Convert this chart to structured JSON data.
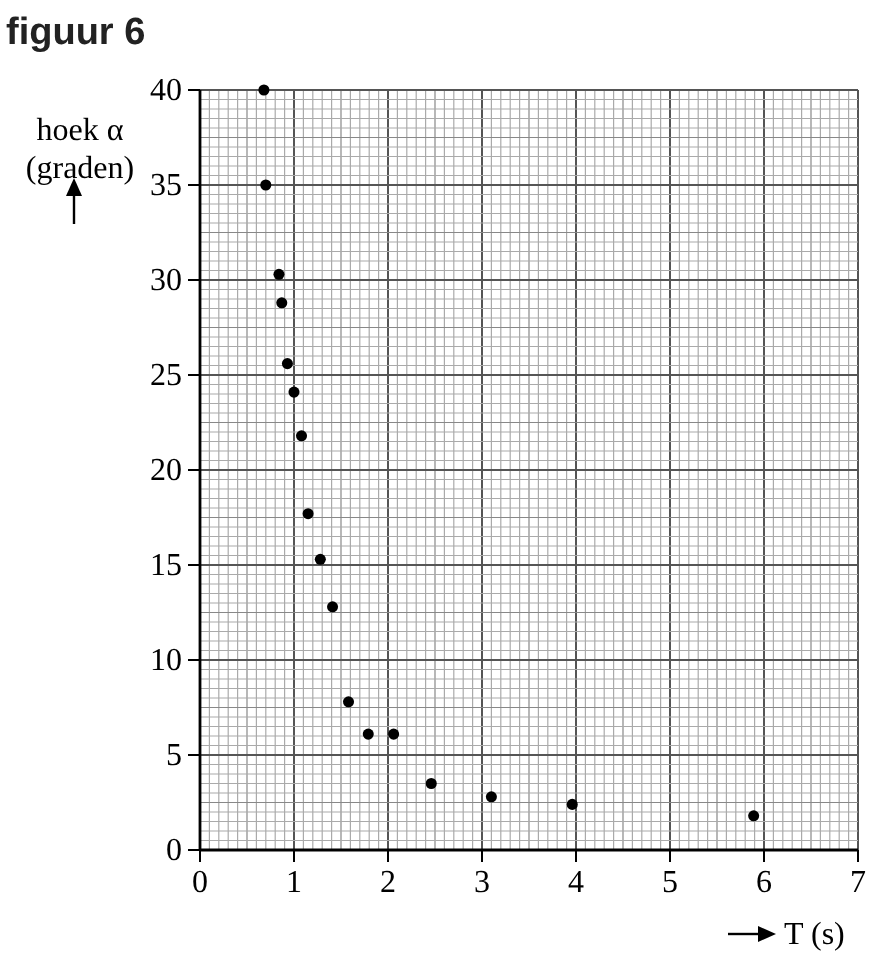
{
  "chart_data": {
    "type": "scatter",
    "title": "figuur 6",
    "xlabel": "T (s)",
    "ylabel": "hoek α (graden)",
    "x": [
      0.68,
      0.7,
      0.84,
      0.87,
      0.93,
      1.0,
      1.08,
      1.15,
      1.28,
      1.41,
      1.58,
      1.79,
      2.06,
      2.46,
      3.1,
      3.96,
      5.89
    ],
    "values": [
      40,
      35,
      30.3,
      28.8,
      25.6,
      24.1,
      21.8,
      17.7,
      15.3,
      12.8,
      7.8,
      6.1,
      6.1,
      3.5,
      2.8,
      2.4,
      1.8
    ],
    "color": "#000000",
    "marker": "circle",
    "xlim": [
      0,
      7
    ],
    "xticks": [
      0,
      1,
      2,
      3,
      4,
      5,
      6,
      7
    ],
    "ylim": [
      0,
      40
    ],
    "yticks": [
      0,
      5,
      10,
      15,
      20,
      25,
      30,
      35,
      40
    ],
    "grid": true
  }
}
